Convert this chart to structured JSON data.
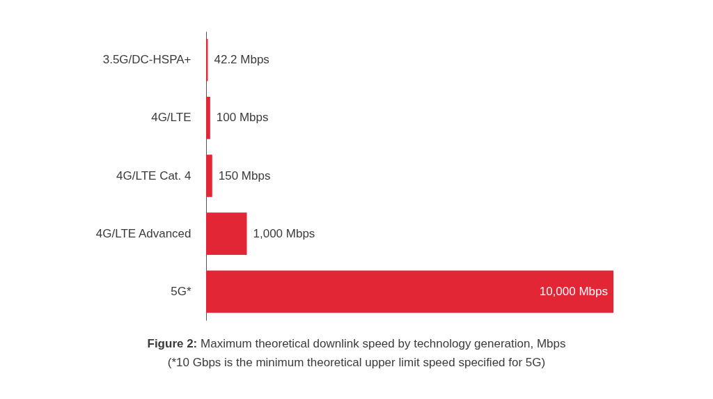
{
  "chart_data": {
    "type": "bar",
    "orientation": "horizontal",
    "categories": [
      "3.5G/DC-HSPA+",
      "4G/LTE",
      "4G/LTE Cat. 4",
      "4G/LTE Advanced",
      "5G*"
    ],
    "values": [
      42.2,
      100,
      150,
      1000,
      10000
    ],
    "value_labels": [
      "42.2 Mbps",
      "100 Mbps",
      "150 Mbps",
      "1,000 Mbps",
      "10,000 Mbps"
    ],
    "color": "#e32636",
    "annotations": [
      "Figure 2: Maximum theoretical downlink speed by technology generation, Mbps",
      "(*10 Gbps is the minimum theoretical upper limit speed specified for 5G)"
    ]
  }
}
